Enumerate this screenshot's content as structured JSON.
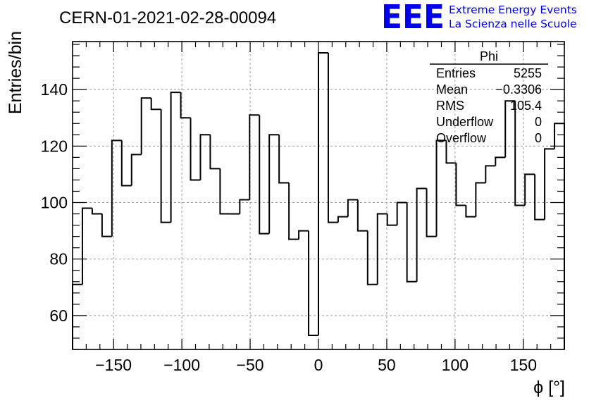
{
  "chart_data": {
    "type": "bar",
    "style": "step-histogram",
    "title": "CERN-01-2021-02-28-00094",
    "xlabel": "ϕ [°]",
    "ylabel": "Entries/bin",
    "xlim": [
      -180,
      180
    ],
    "ylim": [
      48,
      157
    ],
    "bin_width": 7.2,
    "grid": true,
    "x_ticks": [
      -150,
      -100,
      -50,
      0,
      50,
      100,
      150
    ],
    "y_ticks": [
      60,
      80,
      100,
      120,
      140
    ],
    "x_tick_labels": [
      "−150",
      "−100",
      "−50",
      "0",
      "50",
      "100",
      "150"
    ],
    "y_tick_labels": [
      "60",
      "80",
      "100",
      "120",
      "140"
    ],
    "x": [
      -176.4,
      -169.2,
      -162.0,
      -154.8,
      -147.6,
      -140.4,
      -133.2,
      -126.0,
      -118.8,
      -111.6,
      -104.4,
      -97.2,
      -90.0,
      -82.8,
      -75.6,
      -68.4,
      -61.2,
      -54.0,
      -46.8,
      -39.6,
      -32.4,
      -25.2,
      -18.0,
      -10.8,
      -3.6,
      3.6,
      10.8,
      18.0,
      25.2,
      32.4,
      39.6,
      46.8,
      54.0,
      61.2,
      68.4,
      75.6,
      82.8,
      90.0,
      97.2,
      104.4,
      111.6,
      118.8,
      126.0,
      133.2,
      140.4,
      147.6,
      154.8,
      162.0,
      169.2,
      176.4
    ],
    "values": [
      71,
      98,
      96,
      88,
      122,
      106,
      117,
      137,
      133,
      93,
      139,
      130,
      108,
      124,
      112,
      96,
      96,
      101,
      131,
      89,
      124,
      107,
      87,
      90,
      53,
      153,
      93,
      95,
      101,
      90,
      71,
      96,
      92,
      100,
      72,
      105,
      88,
      122,
      114,
      99,
      95,
      107,
      113,
      116,
      136,
      99,
      110,
      94,
      119,
      128
    ],
    "stats_box": {
      "title": "Phi",
      "rows": [
        {
          "label": "Entries",
          "value": "5255"
        },
        {
          "label": "Mean",
          "value": "−0.3306"
        },
        {
          "label": "RMS",
          "value": "105.4"
        },
        {
          "label": "Underflow",
          "value": "0"
        },
        {
          "label": "Overflow",
          "value": "0"
        }
      ]
    }
  },
  "logo": {
    "text": "EEE",
    "line1": "Extreme Energy Events",
    "line2": "La Scienza nelle Scuole",
    "color": "#0000ee"
  },
  "colors": {
    "line": "#000000",
    "grid": "#9a9a9a",
    "logo": "#0000ee"
  }
}
